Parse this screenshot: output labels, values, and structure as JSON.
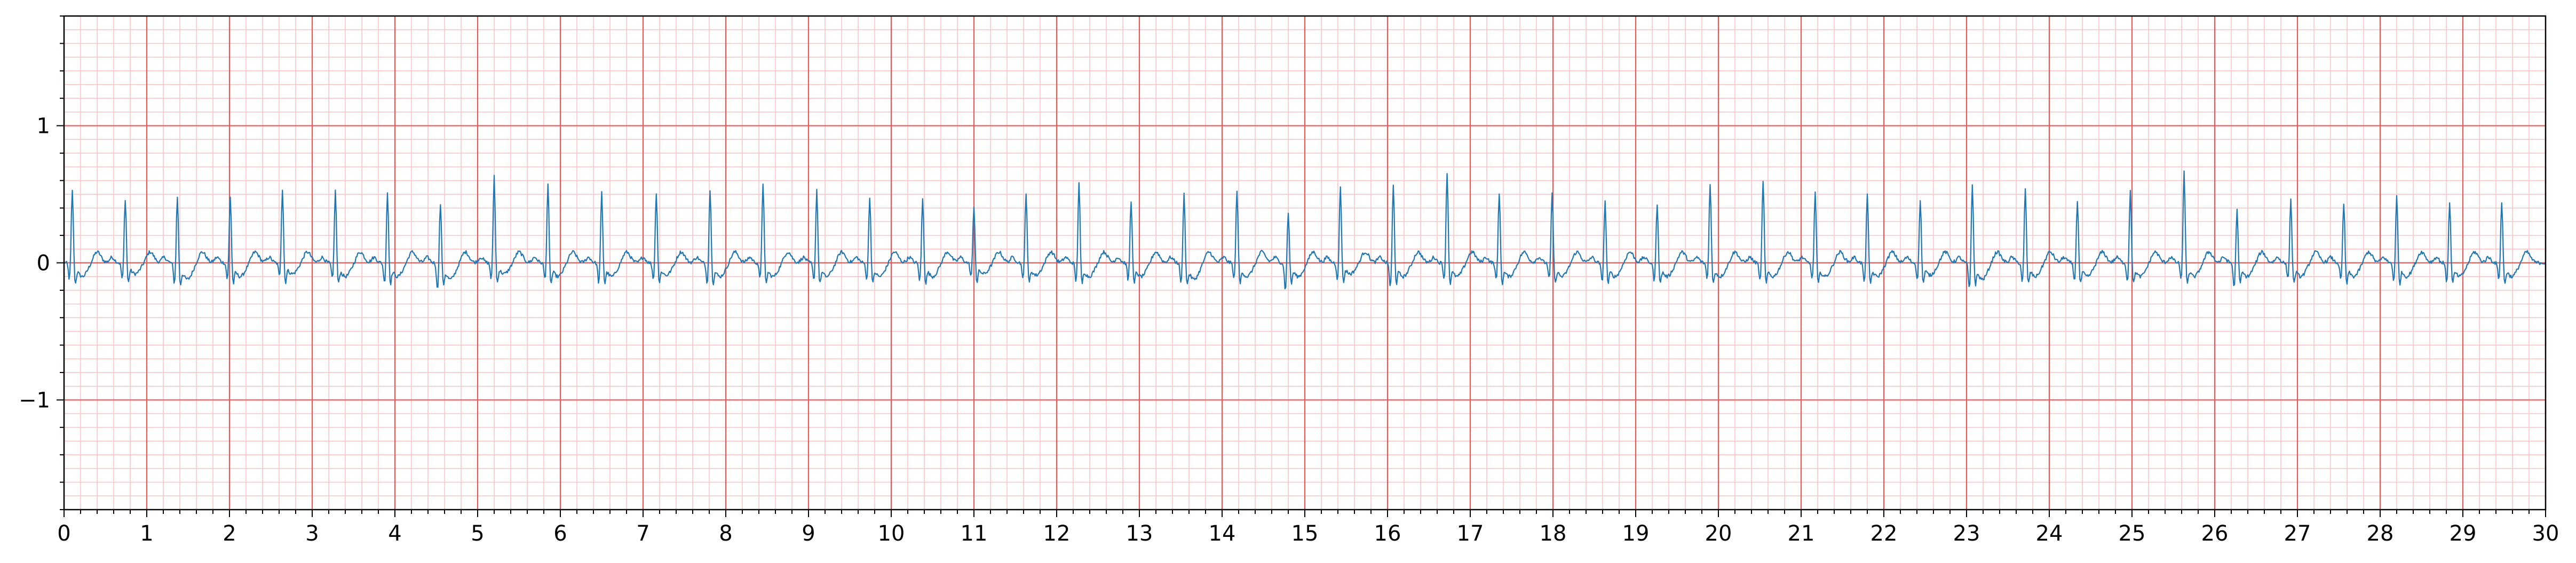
{
  "chart_data": {
    "type": "line",
    "title": "",
    "xlabel": "",
    "ylabel": "",
    "xlim": [
      0,
      30
    ],
    "ylim": [
      -1.8,
      1.8
    ],
    "x_ticks": [
      0,
      1,
      2,
      3,
      4,
      5,
      6,
      7,
      8,
      9,
      10,
      11,
      12,
      13,
      14,
      15,
      16,
      17,
      18,
      19,
      20,
      21,
      22,
      23,
      24,
      25,
      26,
      27,
      28,
      29,
      30
    ],
    "x_tick_labels": [
      "0",
      "1",
      "2",
      "3",
      "4",
      "5",
      "6",
      "7",
      "8",
      "9",
      "10",
      "11",
      "12",
      "13",
      "14",
      "15",
      "16",
      "17",
      "18",
      "19",
      "20",
      "21",
      "22",
      "23",
      "24",
      "25",
      "26",
      "27",
      "28",
      "29",
      "30"
    ],
    "y_ticks": [
      -1,
      0,
      1
    ],
    "y_tick_labels": [
      "−1",
      "0",
      "1"
    ],
    "grid": {
      "major": true,
      "minor": true,
      "major_step_x": 1,
      "minor_step_x": 0.2,
      "major_step_y": 1,
      "minor_step_y": 0.1,
      "major_color": "#e85a5a",
      "minor_color": "#f7c4c4"
    },
    "series": [
      {
        "color": "#1f77b4",
        "sample_rate_hz": 100,
        "beats_r_peak_times_s": [
          0.1,
          0.74,
          1.37,
          2.01,
          2.64,
          3.28,
          3.91,
          4.55,
          5.2,
          5.85,
          6.5,
          7.16,
          7.81,
          8.45,
          9.1,
          9.74,
          10.38,
          11.0,
          11.63,
          12.27,
          12.9,
          13.54,
          14.18,
          14.8,
          15.43,
          16.07,
          16.72,
          17.35,
          17.99,
          18.63,
          19.26,
          19.9,
          20.54,
          21.17,
          21.8,
          22.44,
          23.07,
          23.71,
          24.34,
          24.98,
          25.63,
          26.27,
          26.92,
          27.56,
          28.2,
          28.84,
          29.47
        ],
        "beats_r_amplitude": [
          0.54,
          0.48,
          0.5,
          0.5,
          0.55,
          0.54,
          0.53,
          0.45,
          0.65,
          0.58,
          0.53,
          0.53,
          0.55,
          0.6,
          0.55,
          0.5,
          0.48,
          0.42,
          0.53,
          0.6,
          0.47,
          0.52,
          0.55,
          0.38,
          0.57,
          0.58,
          0.68,
          0.53,
          0.52,
          0.46,
          0.45,
          0.6,
          0.62,
          0.53,
          0.52,
          0.47,
          0.59,
          0.55,
          0.47,
          0.55,
          0.68,
          0.4,
          0.48,
          0.45,
          0.5,
          0.45,
          0.46
        ],
        "beats_q_amplitude": [
          -0.12,
          -0.12,
          -0.15,
          -0.12,
          -0.1,
          -0.12,
          -0.15,
          -0.2,
          -0.12,
          -0.12,
          -0.15,
          -0.12,
          -0.15,
          -0.12,
          -0.13,
          -0.12,
          -0.13,
          -0.1,
          -0.12,
          -0.14,
          -0.13,
          -0.15,
          -0.12,
          -0.2,
          -0.12,
          -0.18,
          -0.12,
          -0.13,
          -0.12,
          -0.14,
          -0.13,
          -0.12,
          -0.14,
          -0.12,
          -0.15,
          -0.12,
          -0.2,
          -0.14,
          -0.13,
          -0.14,
          -0.12,
          -0.18,
          -0.12,
          -0.13,
          -0.13,
          -0.14,
          -0.12
        ],
        "baseline_s_amplitude": [
          -0.1,
          -0.08,
          -0.12,
          -0.1,
          -0.08,
          -0.1,
          -0.1,
          -0.12,
          -0.08,
          -0.1,
          -0.1,
          -0.09,
          -0.1,
          -0.1,
          -0.1,
          -0.1,
          -0.1,
          -0.08,
          -0.09,
          -0.1,
          -0.1,
          -0.12,
          -0.1,
          -0.1,
          -0.08,
          -0.1,
          -0.1,
          -0.1,
          -0.1,
          -0.1,
          -0.1,
          -0.1,
          -0.1,
          -0.1,
          -0.1,
          -0.09,
          -0.12,
          -0.1,
          -0.1,
          -0.1,
          -0.1,
          -0.1,
          -0.1,
          -0.1,
          -0.1,
          -0.1,
          -0.1
        ],
        "t_wave_amplitude": 0.08
      }
    ]
  }
}
